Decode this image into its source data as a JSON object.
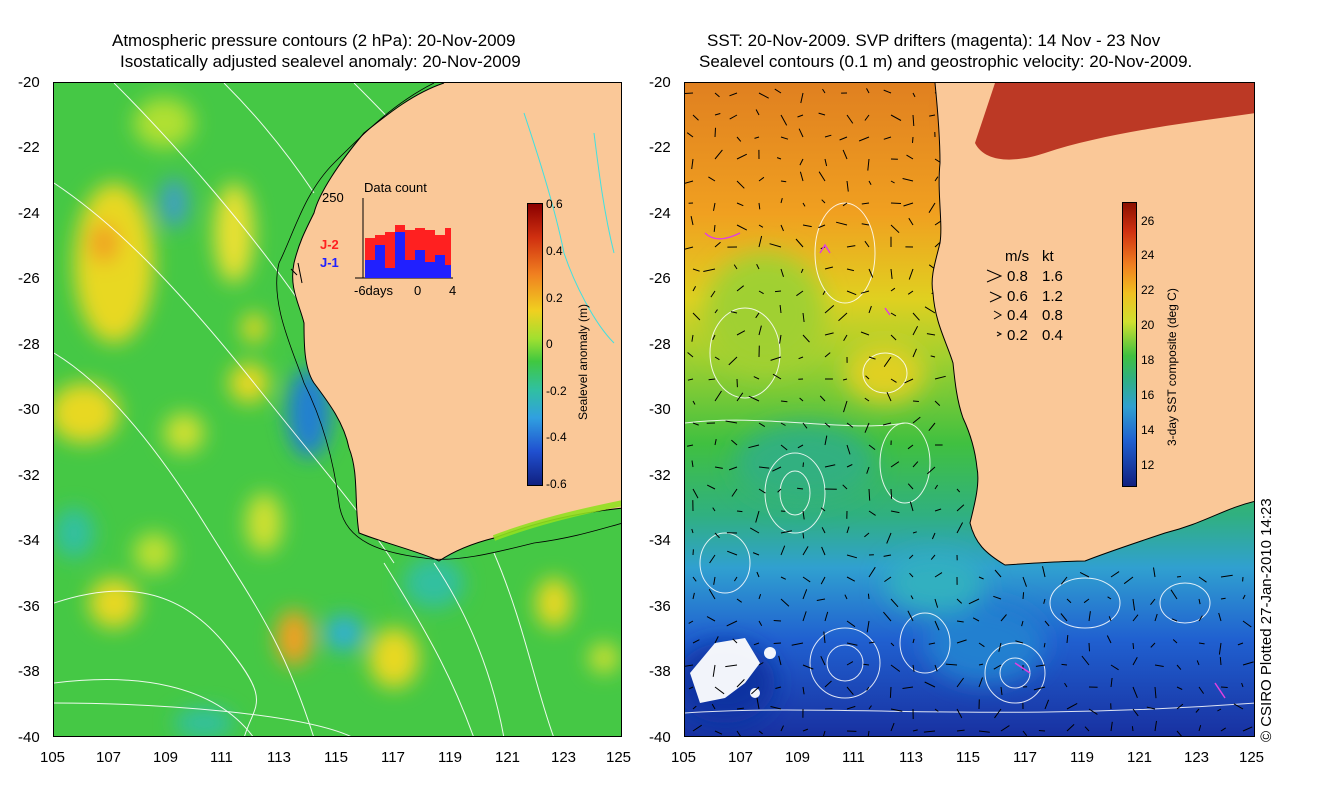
{
  "left_panel": {
    "title_line1": "Atmospheric pressure contours (2 hPa): 20-Nov-2009",
    "title_line2": "Isostatically adjusted sealevel anomaly: 20-Nov-2009",
    "colorbar": {
      "label": "Sealevel anomaly (m)",
      "ticks": [
        "0.6",
        "0.4",
        "0.2",
        "0",
        "-0.2",
        "-0.4",
        "-0.6"
      ]
    },
    "inset": {
      "title": "Data count",
      "ymax_label": "250",
      "series": [
        {
          "name": "J-2",
          "color": "#ff2020"
        },
        {
          "name": "J-1",
          "color": "#2020ff"
        }
      ],
      "x_labels": [
        "-6days",
        "0",
        "4"
      ]
    }
  },
  "right_panel": {
    "title_line1": "SST: 20-Nov-2009. SVP drifters (magenta): 14 Nov - 23 Nov",
    "title_line2": "Sealevel contours (0.1 m) and geostrophic velocity: 20-Nov-2009.",
    "colorbar": {
      "label": "3-day SST composite (deg C)",
      "ticks": [
        "26",
        "24",
        "22",
        "20",
        "18",
        "16",
        "14",
        "12"
      ]
    },
    "velocity_key": {
      "headers": [
        "m/s",
        "kt"
      ],
      "rows": [
        {
          "ms": "0.8",
          "kt": "1.6"
        },
        {
          "ms": "0.6",
          "kt": "1.2"
        },
        {
          "ms": "0.4",
          "kt": "0.8"
        },
        {
          "ms": "0.2",
          "kt": "0.4"
        }
      ]
    }
  },
  "axes": {
    "y_ticks": [
      "-20",
      "-22",
      "-24",
      "-26",
      "-28",
      "-30",
      "-32",
      "-34",
      "-36",
      "-38",
      "-40"
    ],
    "x_ticks": [
      "105",
      "107",
      "109",
      "111",
      "113",
      "115",
      "117",
      "119",
      "121",
      "123",
      "125"
    ],
    "lon_range": [
      105,
      125
    ],
    "lat_range": [
      -40,
      -20
    ]
  },
  "credit": "© CSIRO Plotted 27-Jan-2010 14:23",
  "colors": {
    "land": "#fac898",
    "ocean_mid": "#3cc83c",
    "contour": "#ffffff",
    "drifters": "#e040e0"
  }
}
